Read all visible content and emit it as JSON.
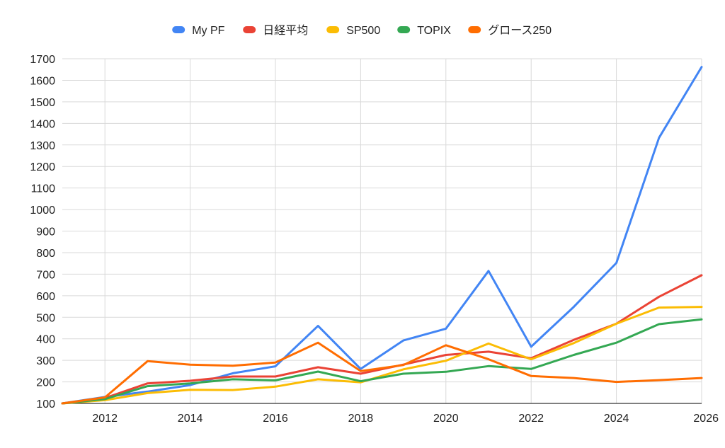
{
  "chart_data": {
    "type": "line",
    "title": "",
    "xlabel": "",
    "ylabel": "",
    "x": [
      2011,
      2012,
      2013,
      2014,
      2015,
      2016,
      2017,
      2018,
      2019,
      2020,
      2021,
      2022,
      2023,
      2024,
      2025,
      2026
    ],
    "xlim": [
      2011,
      2026
    ],
    "ylim": [
      100,
      1700
    ],
    "x_ticks": [
      2012,
      2014,
      2016,
      2018,
      2020,
      2022,
      2024,
      2026
    ],
    "x_tick_labels": [
      "2012",
      "2014",
      "2016",
      "2018",
      "2020",
      "2022",
      "2024",
      "2026"
    ],
    "y_ticks": [
      100,
      200,
      300,
      400,
      500,
      600,
      700,
      800,
      900,
      1000,
      1100,
      1200,
      1300,
      1400,
      1500,
      1600,
      1700
    ],
    "y_tick_labels": [
      "100",
      "200",
      "300",
      "400",
      "500",
      "600",
      "700",
      "800",
      "900",
      "1000",
      "1100",
      "1200",
      "1300",
      "1400",
      "1500",
      "1600",
      "1700"
    ],
    "grid": true,
    "legend_position": "top",
    "series": [
      {
        "name": "My PF",
        "color": "#4285F4",
        "values": [
          100,
          130,
          155,
          185,
          240,
          272,
          460,
          260,
          392,
          447,
          715,
          363,
          548,
          752,
          1333,
          1662
        ]
      },
      {
        "name": "日経平均",
        "color": "#EA4335",
        "values": [
          100,
          125,
          193,
          205,
          225,
          225,
          268,
          238,
          280,
          325,
          340,
          310,
          395,
          470,
          595,
          695
        ]
      },
      {
        "name": "SP500",
        "color": "#FBBC04",
        "values": [
          100,
          115,
          148,
          163,
          162,
          178,
          212,
          198,
          258,
          298,
          378,
          305,
          380,
          470,
          545,
          548
        ]
      },
      {
        "name": "TOPIX",
        "color": "#34A853",
        "values": [
          100,
          120,
          180,
          193,
          212,
          207,
          248,
          203,
          238,
          247,
          273,
          260,
          325,
          382,
          468,
          490
        ]
      },
      {
        "name": "グロース250",
        "color": "#FF6D01",
        "values": [
          100,
          128,
          296,
          280,
          275,
          290,
          382,
          250,
          278,
          370,
          305,
          227,
          218,
          200,
          208,
          218
        ]
      }
    ]
  }
}
